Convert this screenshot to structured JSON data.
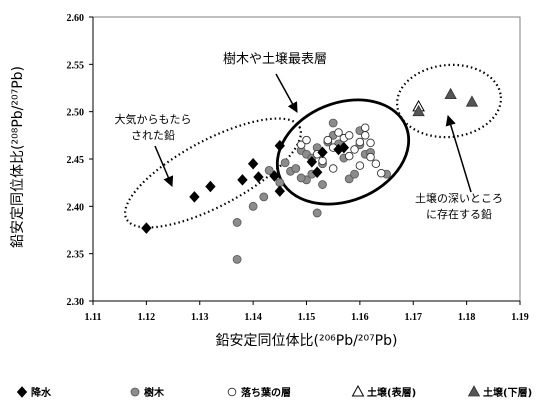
{
  "chart_data": {
    "type": "scatter",
    "xlabel": "鉛安定同位体比(²⁰⁶Pb/²⁰⁷Pb)",
    "ylabel": "鉛安定同位体比(²⁰⁸Pb/²⁰⁷Pb)",
    "xlim": [
      1.11,
      1.19
    ],
    "ylim": [
      2.3,
      2.6
    ],
    "x_ticks": [
      "1.11",
      "1.12",
      "1.13",
      "1.14",
      "1.15",
      "1.16",
      "1.17",
      "1.18",
      "1.19"
    ],
    "y_ticks": [
      "2.30",
      "2.35",
      "2.40",
      "2.45",
      "2.50",
      "2.55",
      "2.60"
    ],
    "grid": false,
    "legend_placement": "bottom",
    "series": [
      {
        "name": "降水",
        "marker": "diamond",
        "color": "#000000",
        "points": [
          [
            1.12,
            2.377
          ],
          [
            1.129,
            2.41
          ],
          [
            1.132,
            2.421
          ],
          [
            1.138,
            2.428
          ],
          [
            1.14,
            2.445
          ],
          [
            1.141,
            2.431
          ],
          [
            1.144,
            2.432
          ],
          [
            1.145,
            2.416
          ],
          [
            1.145,
            2.464
          ],
          [
            1.151,
            2.447
          ],
          [
            1.152,
            2.436
          ],
          [
            1.153,
            2.457
          ],
          [
            1.156,
            2.46
          ],
          [
            1.157,
            2.462
          ]
        ]
      },
      {
        "name": "樹木",
        "marker": "circle",
        "color": "#808080",
        "points": [
          [
            1.137,
            2.344
          ],
          [
            1.137,
            2.383
          ],
          [
            1.14,
            2.4
          ],
          [
            1.142,
            2.41
          ],
          [
            1.143,
            2.438
          ],
          [
            1.145,
            2.425
          ],
          [
            1.146,
            2.446
          ],
          [
            1.147,
            2.437
          ],
          [
            1.148,
            2.44
          ],
          [
            1.149,
            2.459
          ],
          [
            1.15,
            2.455
          ],
          [
            1.15,
            2.428
          ],
          [
            1.151,
            2.451
          ],
          [
            1.151,
            2.434
          ],
          [
            1.152,
            2.462
          ],
          [
            1.152,
            2.393
          ],
          [
            1.153,
            2.445
          ],
          [
            1.153,
            2.423
          ],
          [
            1.154,
            2.468
          ],
          [
            1.155,
            2.475
          ],
          [
            1.155,
            2.488
          ],
          [
            1.156,
            2.466
          ],
          [
            1.157,
            2.451
          ],
          [
            1.158,
            2.429
          ],
          [
            1.159,
            2.434
          ],
          [
            1.16,
            2.465
          ],
          [
            1.16,
            2.48
          ],
          [
            1.161,
            2.455
          ],
          [
            1.162,
            2.457
          ],
          [
            1.165,
            2.434
          ],
          [
            1.149,
            2.43
          ]
        ]
      },
      {
        "name": "落ち葉の層",
        "marker": "circle-open",
        "color": "#000000",
        "points": [
          [
            1.149,
            2.465
          ],
          [
            1.15,
            2.47
          ],
          [
            1.152,
            2.455
          ],
          [
            1.153,
            2.448
          ],
          [
            1.154,
            2.47
          ],
          [
            1.155,
            2.462
          ],
          [
            1.156,
            2.478
          ],
          [
            1.157,
            2.472
          ],
          [
            1.158,
            2.453
          ],
          [
            1.158,
            2.475
          ],
          [
            1.159,
            2.46
          ],
          [
            1.16,
            2.443
          ],
          [
            1.16,
            2.468
          ],
          [
            1.161,
            2.483
          ],
          [
            1.162,
            2.467
          ],
          [
            1.162,
            2.452
          ],
          [
            1.163,
            2.445
          ],
          [
            1.164,
            2.435
          ],
          [
            1.155,
            2.44
          ],
          [
            1.161,
            2.475
          ]
        ]
      },
      {
        "name": "土壌(表層)",
        "marker": "triangle-open",
        "color": "#000000",
        "points": [
          [
            1.171,
            2.505
          ]
        ]
      },
      {
        "name": "土壌(下層)",
        "marker": "triangle",
        "color": "#555555",
        "points": [
          [
            1.171,
            2.5
          ],
          [
            1.177,
            2.518
          ],
          [
            1.181,
            2.51
          ]
        ]
      }
    ],
    "annotations": [
      {
        "text_lines": [
          "樹木や土壌最表層"
        ]
      },
      {
        "text_lines": [
          "大気からもたら",
          "された鉛"
        ]
      },
      {
        "text_lines": [
          "土壌の深いところ",
          "に存在する鉛"
        ]
      }
    ]
  }
}
